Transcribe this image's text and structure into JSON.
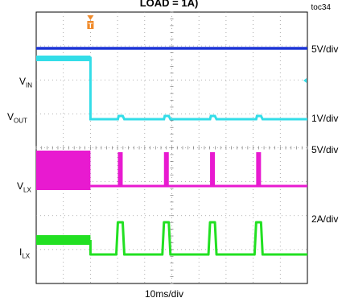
{
  "chart_data": {
    "type": "line",
    "title": "LOAD = 1A)",
    "figure_tag": "toc34",
    "time_scale": "10ms/div",
    "divisions": {
      "x": 10,
      "y": 8
    },
    "grid": true,
    "trigger_marker": "T",
    "trigger_position_div": 2,
    "channels": [
      {
        "name": "VIN",
        "label_main": "V",
        "label_sub": "IN",
        "scale": "5V/div",
        "color": "#1c34d6"
      },
      {
        "name": "VOUT",
        "label_main": "V",
        "label_sub": "OUT",
        "scale": "1V/div",
        "color": "#33dde8"
      },
      {
        "name": "VLX",
        "label_main": "V",
        "label_sub": "LX",
        "scale": "5V/div",
        "color": "#e81ad0"
      },
      {
        "name": "ILX",
        "label_main": "I",
        "label_sub": "LX",
        "scale": "2A/div",
        "color": "#22e022"
      }
    ],
    "pulse_times_div": [
      3.1,
      4.8,
      6.5,
      8.2
    ]
  }
}
